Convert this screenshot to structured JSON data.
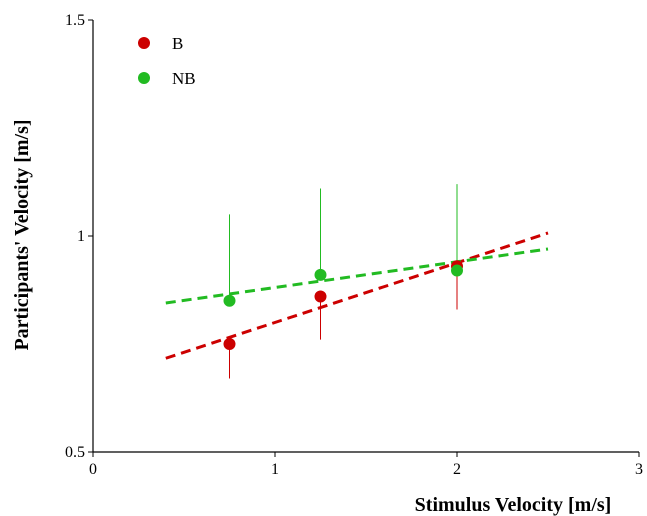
{
  "chart_data": {
    "type": "scatter",
    "title": "",
    "xlabel": "Stimulus Velocity [m/s]",
    "ylabel": "Participants' Velocity [m/s]",
    "xlim": [
      0,
      3
    ],
    "ylim": [
      0.5,
      1.5
    ],
    "xticks": [
      "0",
      "1",
      "2",
      "3"
    ],
    "yticks": [
      "0.5",
      "1",
      "1.5"
    ],
    "grid": false,
    "legend_position": "top-left",
    "series": [
      {
        "name": "B",
        "color": "#cc0000",
        "x": [
          0.75,
          1.25,
          2.0
        ],
        "y": [
          0.75,
          0.86,
          0.93
        ],
        "err_low": [
          0.67,
          0.76,
          0.83
        ],
        "err_high": [
          0.75,
          0.86,
          0.93
        ],
        "trend": {
          "x": [
            0.4,
            2.5
          ],
          "y": [
            0.717,
            1.007
          ]
        }
      },
      {
        "name": "NB",
        "color": "#22bb22",
        "x": [
          0.75,
          1.25,
          2.0
        ],
        "y": [
          0.85,
          0.91,
          0.92
        ],
        "err_low": [
          0.85,
          0.91,
          0.92
        ],
        "err_high": [
          1.05,
          1.11,
          1.12
        ],
        "trend": {
          "x": [
            0.4,
            2.5
          ],
          "y": [
            0.845,
            0.97
          ]
        }
      }
    ]
  }
}
